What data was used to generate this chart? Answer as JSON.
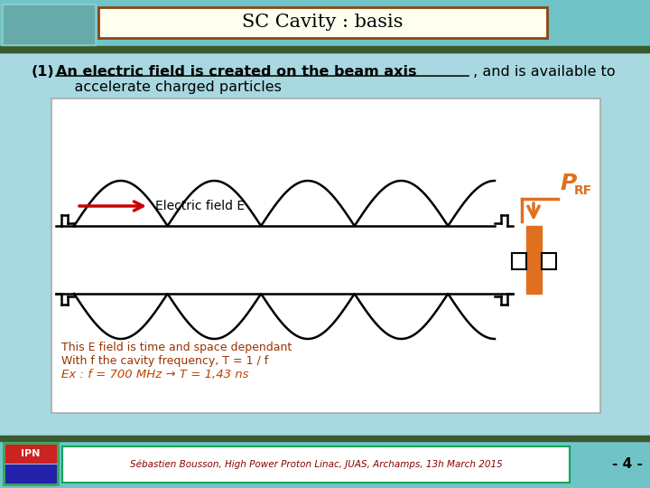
{
  "title": "SC Cavity : basis",
  "title_bg": "#FFFFF0",
  "title_border": "#8B4513",
  "top_bg": "#70C4C8",
  "slide_bg": "#A8D8E0",
  "header_strip": "#3A5A30",
  "point1_underlined": "An electric field is created on the beam axis",
  "point1_rest": " , and is available to",
  "point1_line2": "    accelerate charged particles",
  "electric_field_label": "Electric field E",
  "arrow_color": "#CC0000",
  "prf_color": "#E07020",
  "coupler_color": "#E07020",
  "text1": "This E field is time and space dependant",
  "text2": "With f the cavity frequency, T = 1 / f",
  "text3": "Ex : f = 700 MHz → T = 1,43 ns",
  "text_color_dark_red": "#993300",
  "text_color_orange_red": "#BB4400",
  "footer_text": "Sébastien Bousson, High Power Proton Linac, JUAS, Archamps, 13h March 2015",
  "page_num": "- 4 -",
  "footer_border": "#00AA55"
}
